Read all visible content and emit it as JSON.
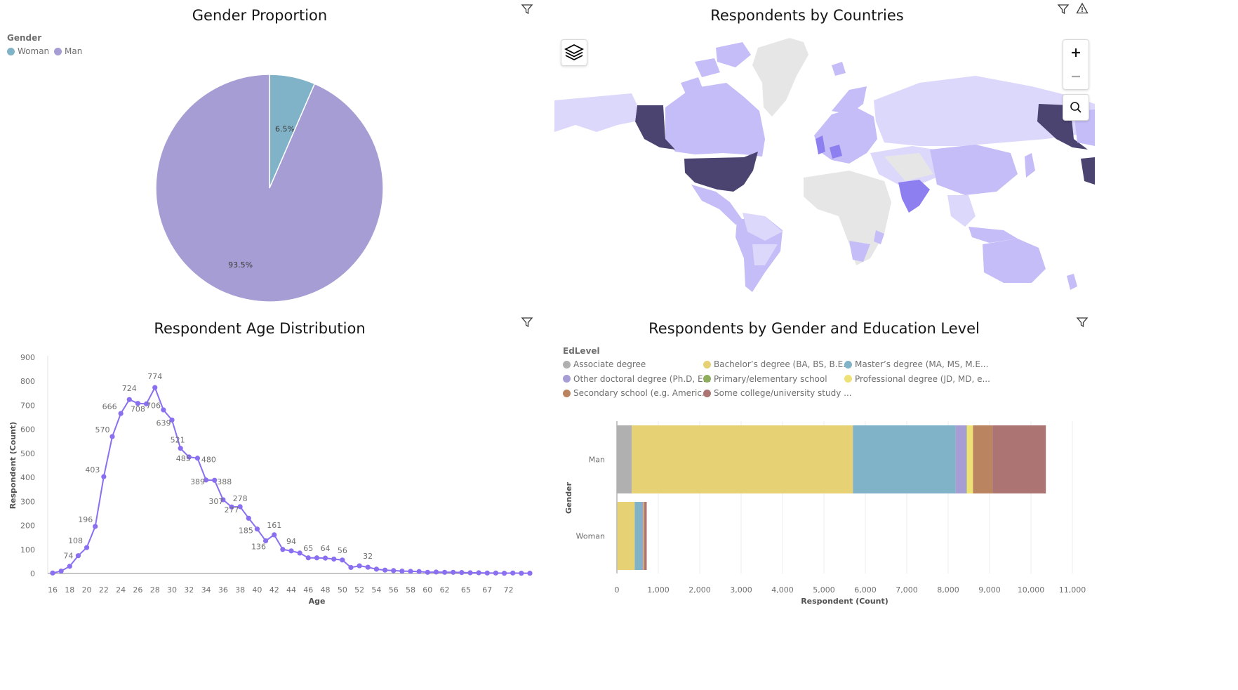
{
  "colors": {
    "woman": "#80b2c8",
    "man": "#a59dd3",
    "line": "#8a6ff0",
    "map_dark": "#4b4370",
    "map_mid": "#8e7ff0",
    "map_light": "#c4bdf7",
    "map_pale": "#dcd8fb",
    "map_none": "#e6e6e6"
  },
  "panels": {
    "gender": {
      "title": "Gender Proportion",
      "filter_icon": "filter-icon"
    },
    "countries": {
      "title": "Respondents by Countries",
      "filter_icon": "filter-icon",
      "warning_icon": "warning-icon",
      "layers_icon": "layers-icon",
      "zoom_in_icon": "plus-icon",
      "zoom_out_icon": "minus-icon",
      "search_icon": "search-icon"
    },
    "age": {
      "title": "Respondent Age Distribution",
      "filter_icon": "filter-icon"
    },
    "education": {
      "title": "Respondents by Gender and Education Level",
      "filter_icon": "filter-icon"
    }
  },
  "chart_data": [
    {
      "type": "pie",
      "title": "Gender Proportion",
      "legend_title": "Gender",
      "legend_position": "top-left",
      "categories": [
        "Woman",
        "Man"
      ],
      "values": [
        6.5,
        93.5
      ],
      "labels": [
        "6.5%",
        "93.5%"
      ]
    },
    {
      "type": "line",
      "title": "Respondent Age Distribution",
      "xlabel": "Age",
      "ylabel": "Respondent (Count)",
      "ylim": [
        0,
        900
      ],
      "yticks": [
        0,
        100,
        200,
        300,
        400,
        500,
        600,
        700,
        800,
        900
      ],
      "xticks": [
        "16",
        "18",
        "20",
        "22",
        "24",
        "26",
        "28",
        "30",
        "32",
        "34",
        "36",
        "38",
        "40",
        "42",
        "44",
        "46",
        "48",
        "50",
        "52",
        "54",
        "56",
        "58",
        "60",
        "62",
        "65",
        "67",
        "72"
      ],
      "grid": false,
      "x": [
        16,
        17,
        18,
        19,
        20,
        21,
        22,
        23,
        24,
        25,
        26,
        27,
        28,
        29,
        30,
        31,
        32,
        33,
        34,
        35,
        36,
        37,
        38,
        39,
        40,
        41,
        42,
        43,
        44,
        45,
        46,
        47,
        48,
        49,
        50,
        51,
        52,
        53,
        54,
        55,
        56,
        57,
        58,
        59,
        60,
        61,
        62,
        63,
        64,
        65,
        66,
        67,
        68,
        69,
        70,
        71,
        72
      ],
      "values": [
        2,
        10,
        30,
        74,
        108,
        196,
        403,
        570,
        666,
        724,
        708,
        706,
        774,
        681,
        639,
        521,
        485,
        480,
        389,
        388,
        307,
        277,
        278,
        230,
        185,
        136,
        161,
        100,
        94,
        85,
        65,
        65,
        64,
        60,
        56,
        25,
        32,
        26,
        18,
        14,
        12,
        10,
        9,
        8,
        5,
        6,
        5,
        5,
        4,
        3,
        3,
        2,
        2,
        1,
        2,
        1,
        1
      ],
      "point_labels": [
        {
          "x": 19,
          "text": "74"
        },
        {
          "x": 20,
          "text": "108"
        },
        {
          "x": 21,
          "text": "196"
        },
        {
          "x": 22,
          "text": "403"
        },
        {
          "x": 23,
          "text": "570"
        },
        {
          "x": 24,
          "text": "666"
        },
        {
          "x": 25,
          "text": "724"
        },
        {
          "x": 26,
          "text": "708"
        },
        {
          "x": 27,
          "text": "706"
        },
        {
          "x": 28,
          "text": "774"
        },
        {
          "x": 30,
          "text": "639"
        },
        {
          "x": 31,
          "text": "521"
        },
        {
          "x": 32,
          "text": "485"
        },
        {
          "x": 33,
          "text": "480"
        },
        {
          "x": 34,
          "text": "389"
        },
        {
          "x": 35,
          "text": "388"
        },
        {
          "x": 36,
          "text": "307"
        },
        {
          "x": 37,
          "text": "277"
        },
        {
          "x": 38,
          "text": "278"
        },
        {
          "x": 40,
          "text": "185"
        },
        {
          "x": 41,
          "text": "136"
        },
        {
          "x": 42,
          "text": "161"
        },
        {
          "x": 44,
          "text": "94"
        },
        {
          "x": 46,
          "text": "65"
        },
        {
          "x": 48,
          "text": "64"
        },
        {
          "x": 50,
          "text": "56"
        },
        {
          "x": 52,
          "text": "32"
        }
      ]
    },
    {
      "type": "bar",
      "orientation": "horizontal",
      "stacked": true,
      "title": "Respondents by Gender and Education Level",
      "legend_title": "EdLevel",
      "legend_position": "top-left",
      "xlabel": "Respondent (Count)",
      "ylabel": "Gender",
      "xlim": [
        0,
        11000
      ],
      "xticks": [
        "0",
        "1,000",
        "2,000",
        "3,000",
        "4,000",
        "5,000",
        "6,000",
        "7,000",
        "8,000",
        "9,000",
        "10,000",
        "11,000"
      ],
      "categories": [
        "Man",
        "Woman"
      ],
      "series": [
        {
          "name": "Associate degree",
          "color": "#b0b0b0",
          "values": [
            360,
            10
          ]
        },
        {
          "name": "Bachelor’s degree (BA, BS, B.E...",
          "color": "#e6d175",
          "values": [
            5340,
            420
          ]
        },
        {
          "name": "Master’s degree (MA, MS, M.E...",
          "color": "#80b2c8",
          "values": [
            2480,
            180
          ]
        },
        {
          "name": "Other doctoral degree (Ph.D, E...",
          "color": "#a59dd3",
          "values": [
            260,
            20
          ]
        },
        {
          "name": "Primary/elementary school",
          "color": "#8fae5c",
          "values": [
            10,
            2
          ]
        },
        {
          "name": "Professional degree (JD, MD, e...",
          "color": "#eee276",
          "values": [
            150,
            8
          ]
        },
        {
          "name": "Secondary school (e.g. Americ...",
          "color": "#b9845f",
          "values": [
            470,
            30
          ]
        },
        {
          "name": "Some college/university study ...",
          "color": "#ad7474",
          "values": [
            1290,
            50
          ]
        }
      ]
    },
    {
      "type": "map",
      "title": "Respondents by Countries",
      "legend": "none",
      "values_by_region": {
        "United States": "highest",
        "Alaska": "highest",
        "India": "high",
        "United Kingdom": "high",
        "Germany": "high"
      }
    }
  ]
}
